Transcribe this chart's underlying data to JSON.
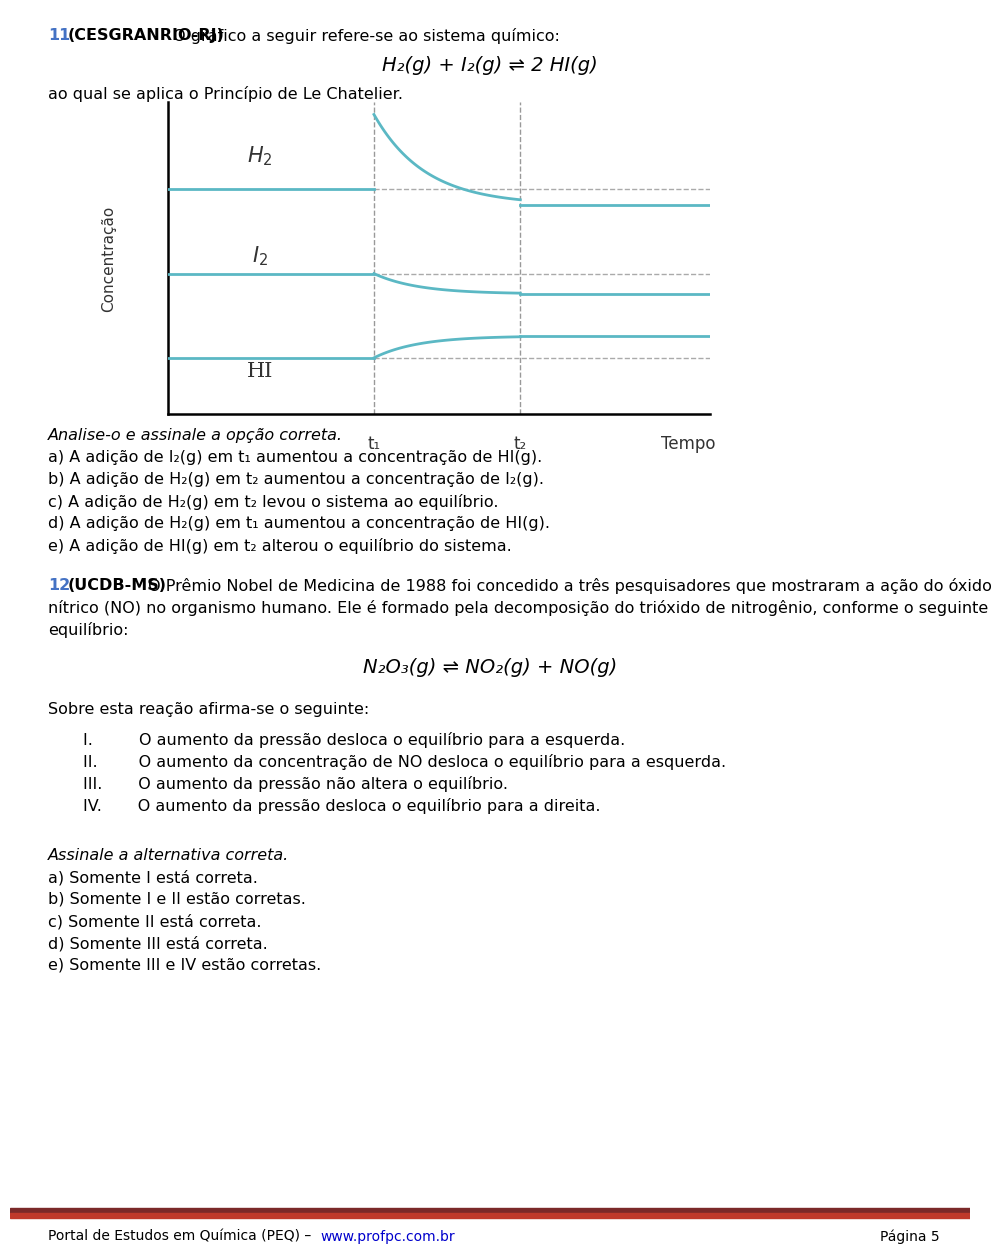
{
  "title_number": "11",
  "title_bold": "(CESGRANRIO-RJ)",
  "title_text": " O gráfico a seguir refere-se ao sistema químico:",
  "equation1": "H₂(g) + I₂(g) ⇌ 2 HI(g)",
  "subtitle": "ao qual se aplica o Princípio de Le Chatelier.",
  "ylabel": "Concentração",
  "xlabel": "Tempo",
  "t1_label": "t₁",
  "t2_label": "t₂",
  "curve_color": "#5bb8c4",
  "dashed_color": "#aaaaaa",
  "h2_label": "H₂",
  "i2_label": "I₂",
  "hi_label": "HI",
  "options_title": "Analise-o e assinale a opção correta.",
  "option_a": "a) A adição de I₂(g) em t₁ aumentou a concentração de HI(g).",
  "option_b": "b) A adição de H₂(g) em t₂ aumentou a concentração de I₂(g).",
  "option_c": "c) A adição de H₂(g) em t₂ levou o sistema ao equilíbrio.",
  "option_d": "d) A adição de H₂(g) em t₁ aumentou a concentração de HI(g).",
  "option_e": "e) A adição de HI(g) em t₂ alterou o equilíbrio do sistema.",
  "q12_number": "12",
  "q12_bold": "(UCDB-MS)",
  "q12_line1": " O Prêmio Nobel de Medicina de 1988 foi concedido a três pesquisadores que mostraram a ação do óxido",
  "q12_line2": "nítrico (NO) no organismo humano. Ele é formado pela decomposição do trióxido de nitrogênio, conforme o seguinte",
  "q12_line3": "equilíbrio:",
  "equation2": "N₂O₃(g) ⇌ NO₂(g) + NO(g)",
  "q12_sub": "Sobre esta reação afirma-se o seguinte:",
  "q12_I": "I.         O aumento da pressão desloca o equilíbrio para a esquerda.",
  "q12_II": "II.        O aumento da concentração de NO desloca o equilíbrio para a esquerda.",
  "q12_III": "III.       O aumento da pressão não altera o equilíbrio.",
  "q12_IV": "IV.       O aumento da pressão desloca o equilíbrio para a direita.",
  "q12_assinale": "Assinale a alternativa correta.",
  "q12_a": "a) Somente I está correta.",
  "q12_b": "b) Somente I e II estão corretas.",
  "q12_c": "c) Somente II está correta.",
  "q12_d": "d) Somente III está correta.",
  "q12_e": "e) Somente III e IV estão corretas.",
  "footer_text": "Portal de Estudos em Química (PEQ) – ",
  "footer_url": "www.profpc.com.br",
  "footer_right": "Página 5",
  "bg_color": "#ffffff",
  "text_color": "#000000",
  "number_color": "#4472c4",
  "footer_bar_dark": "#7b2929",
  "footer_bar_light": "#c0392b"
}
